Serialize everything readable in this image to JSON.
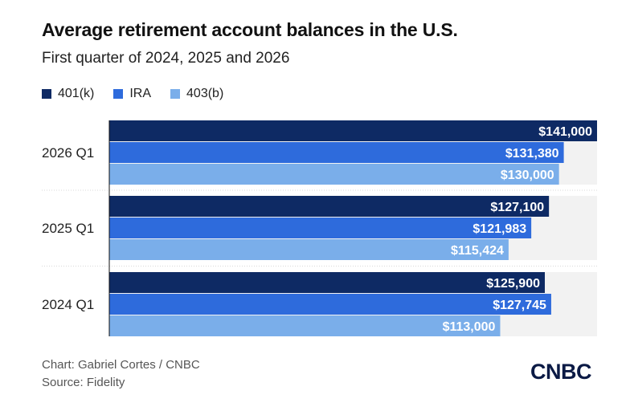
{
  "header": {
    "title": "Average retirement account balances in the U.S.",
    "subtitle": "First quarter of 2024, 2025 and 2026"
  },
  "footer": {
    "credit": "Chart: Gabriel Cortes / CNBC",
    "source": "Source: Fidelity",
    "logo_text": "CNBC"
  },
  "colors": {
    "401k": "#0e2a64",
    "ira": "#2e6bdc",
    "403b": "#7aaeea",
    "track": "#f2f2f2",
    "label": "#ffffff"
  },
  "chart_data": {
    "type": "bar",
    "orientation": "horizontal",
    "categories": [
      "2026 Q1",
      "2025 Q1",
      "2024 Q1"
    ],
    "series": [
      {
        "name": "401(k)",
        "color": "#0e2a64",
        "values": [
          141000,
          127100,
          125900
        ],
        "labels": [
          "$141,000",
          "$127,100",
          "$125,900"
        ]
      },
      {
        "name": "IRA",
        "color": "#2e6bdc",
        "values": [
          131380,
          121983,
          127745
        ],
        "labels": [
          "$131,380",
          "$121,983",
          "$127,745"
        ]
      },
      {
        "name": "403(b)",
        "color": "#7aaeea",
        "values": [
          130000,
          115424,
          113000
        ],
        "labels": [
          "$130,000",
          "$115,424",
          "$113,000"
        ]
      }
    ],
    "xlim": [
      0,
      141000
    ],
    "legend": "top-left",
    "grid": false
  }
}
